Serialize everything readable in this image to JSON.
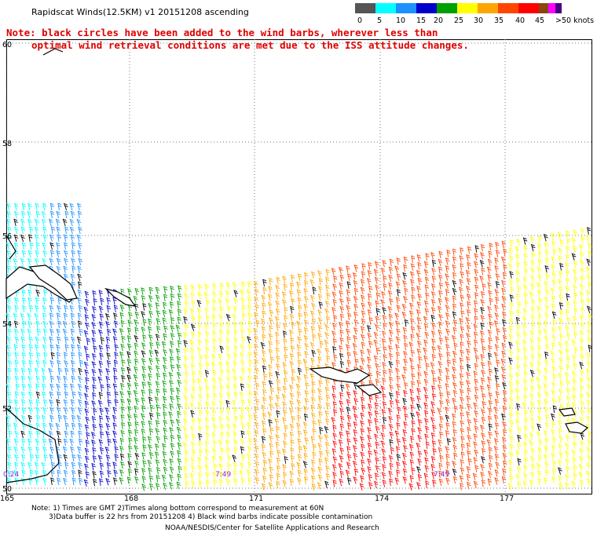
{
  "title": "Rapidscat Winds(12.5KM) v1 20151208 ascending",
  "note": {
    "line1": "Note: black circles have been added to the wind barbs, wherever less than",
    "line2": "optimal wind retrieval conditions are met due to the ISS attitude changes."
  },
  "legend": {
    "labels": [
      "0",
      "5",
      "10",
      "15",
      "20",
      "25",
      "30",
      "35",
      "40",
      "45",
      ">50 knots"
    ],
    "colors": [
      "#555555",
      "#00ffff",
      "#1e90ff",
      "#0000cd",
      "#00a000",
      "#ffff00",
      "#ffa500",
      "#ff4500",
      "#ff0000",
      "#8b4513",
      "#ff00ff",
      "#4b0082"
    ]
  },
  "axes": {
    "lat_labels": [
      "60",
      "58",
      "56",
      "54",
      "52",
      "50"
    ],
    "lon_labels": [
      "165",
      "168",
      "171",
      "174",
      "177"
    ]
  },
  "time_stamps": [
    "0:24",
    "7:49",
    "7:49"
  ],
  "footer": {
    "line1": "Note: 1) Times are GMT 2)Times along bottom correspond to measurement at 60N",
    "line2": "3)Data buffer is 22 hrs from 20151208 4) Black wind barbs indicate possible contamination",
    "credit": "NOAA/NESDIS/Center for Satellite Applications and Research"
  }
}
